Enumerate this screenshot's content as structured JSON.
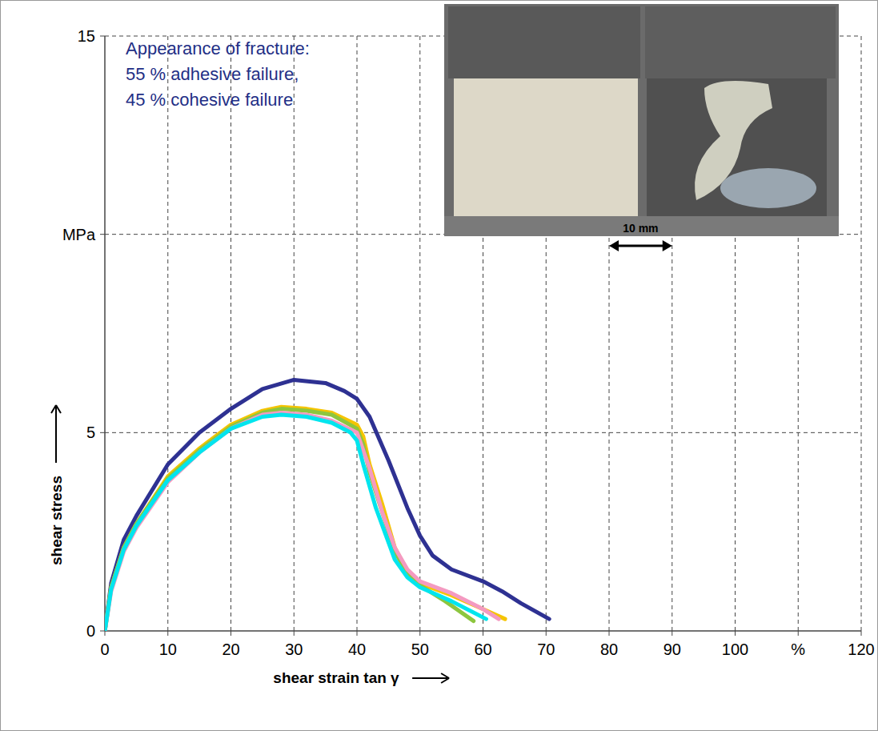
{
  "chart_data": {
    "type": "line",
    "xlabel": "shear strain tan γ",
    "ylabel": "shear stress",
    "annotation": [
      "Appearance of fracture:",
      "55 % adhesive failure,",
      "45 % cohesive failure"
    ],
    "scale_bar": "10 mm",
    "xlim": [
      0,
      120
    ],
    "xticks": [
      0,
      10,
      20,
      30,
      40,
      50,
      60,
      70,
      80,
      90,
      100,
      {
        "value": 110,
        "label": "%"
      },
      120
    ],
    "ylim": [
      0,
      15
    ],
    "yticks": [
      0,
      5,
      {
        "value": 10,
        "label": "MPa"
      },
      15
    ],
    "grid": true,
    "series": [
      {
        "color": "#2e3192",
        "x": [
          0,
          1,
          3,
          5,
          10,
          15,
          20,
          25,
          30,
          35,
          38,
          40,
          42,
          45,
          48,
          50,
          52,
          55,
          60,
          63,
          66,
          70.5
        ],
        "values": [
          0,
          1.2,
          2.3,
          2.9,
          4.2,
          5.0,
          5.6,
          6.1,
          6.33,
          6.25,
          6.05,
          5.85,
          5.4,
          4.3,
          3.1,
          2.4,
          1.9,
          1.55,
          1.25,
          1.0,
          0.7,
          0.3
        ]
      },
      {
        "color": "#f5c400",
        "x": [
          0,
          1,
          3,
          5,
          10,
          15,
          20,
          25,
          28,
          32,
          36,
          40,
          41,
          42,
          44,
          46,
          48,
          50,
          55,
          60,
          63.5
        ],
        "values": [
          0,
          1.1,
          2.1,
          2.7,
          3.9,
          4.6,
          5.2,
          5.55,
          5.65,
          5.6,
          5.5,
          5.2,
          4.9,
          4.2,
          3.2,
          2.1,
          1.5,
          1.2,
          0.9,
          0.55,
          0.3
        ]
      },
      {
        "color": "#8dc63f",
        "x": [
          0,
          1,
          3,
          5,
          10,
          15,
          20,
          25,
          28,
          32,
          36,
          40,
          41,
          42,
          44,
          46,
          48,
          50,
          54,
          58.5
        ],
        "values": [
          0,
          1.1,
          2.1,
          2.7,
          3.85,
          4.55,
          5.15,
          5.5,
          5.6,
          5.55,
          5.45,
          5.1,
          4.7,
          4.0,
          3.0,
          2.0,
          1.45,
          1.15,
          0.75,
          0.25
        ]
      },
      {
        "color": "#f49ac1",
        "x": [
          0,
          1,
          3,
          5,
          10,
          15,
          20,
          25,
          28,
          32,
          36,
          40,
          42,
          44,
          46,
          48,
          50,
          55,
          60,
          62.5
        ],
        "values": [
          0,
          1.0,
          2.0,
          2.6,
          3.75,
          4.5,
          5.1,
          5.45,
          5.5,
          5.45,
          5.3,
          5.0,
          4.1,
          3.0,
          2.1,
          1.55,
          1.25,
          0.95,
          0.55,
          0.3
        ]
      },
      {
        "color": "#00e5ee",
        "x": [
          0,
          1,
          3,
          5,
          10,
          15,
          20,
          25,
          28,
          32,
          36,
          39,
          40,
          41,
          43,
          46,
          48,
          50,
          55,
          60.5
        ],
        "values": [
          0,
          1.05,
          2.05,
          2.65,
          3.8,
          4.5,
          5.1,
          5.4,
          5.45,
          5.4,
          5.25,
          5.0,
          4.8,
          4.2,
          3.1,
          1.8,
          1.35,
          1.1,
          0.75,
          0.3
        ]
      }
    ]
  }
}
